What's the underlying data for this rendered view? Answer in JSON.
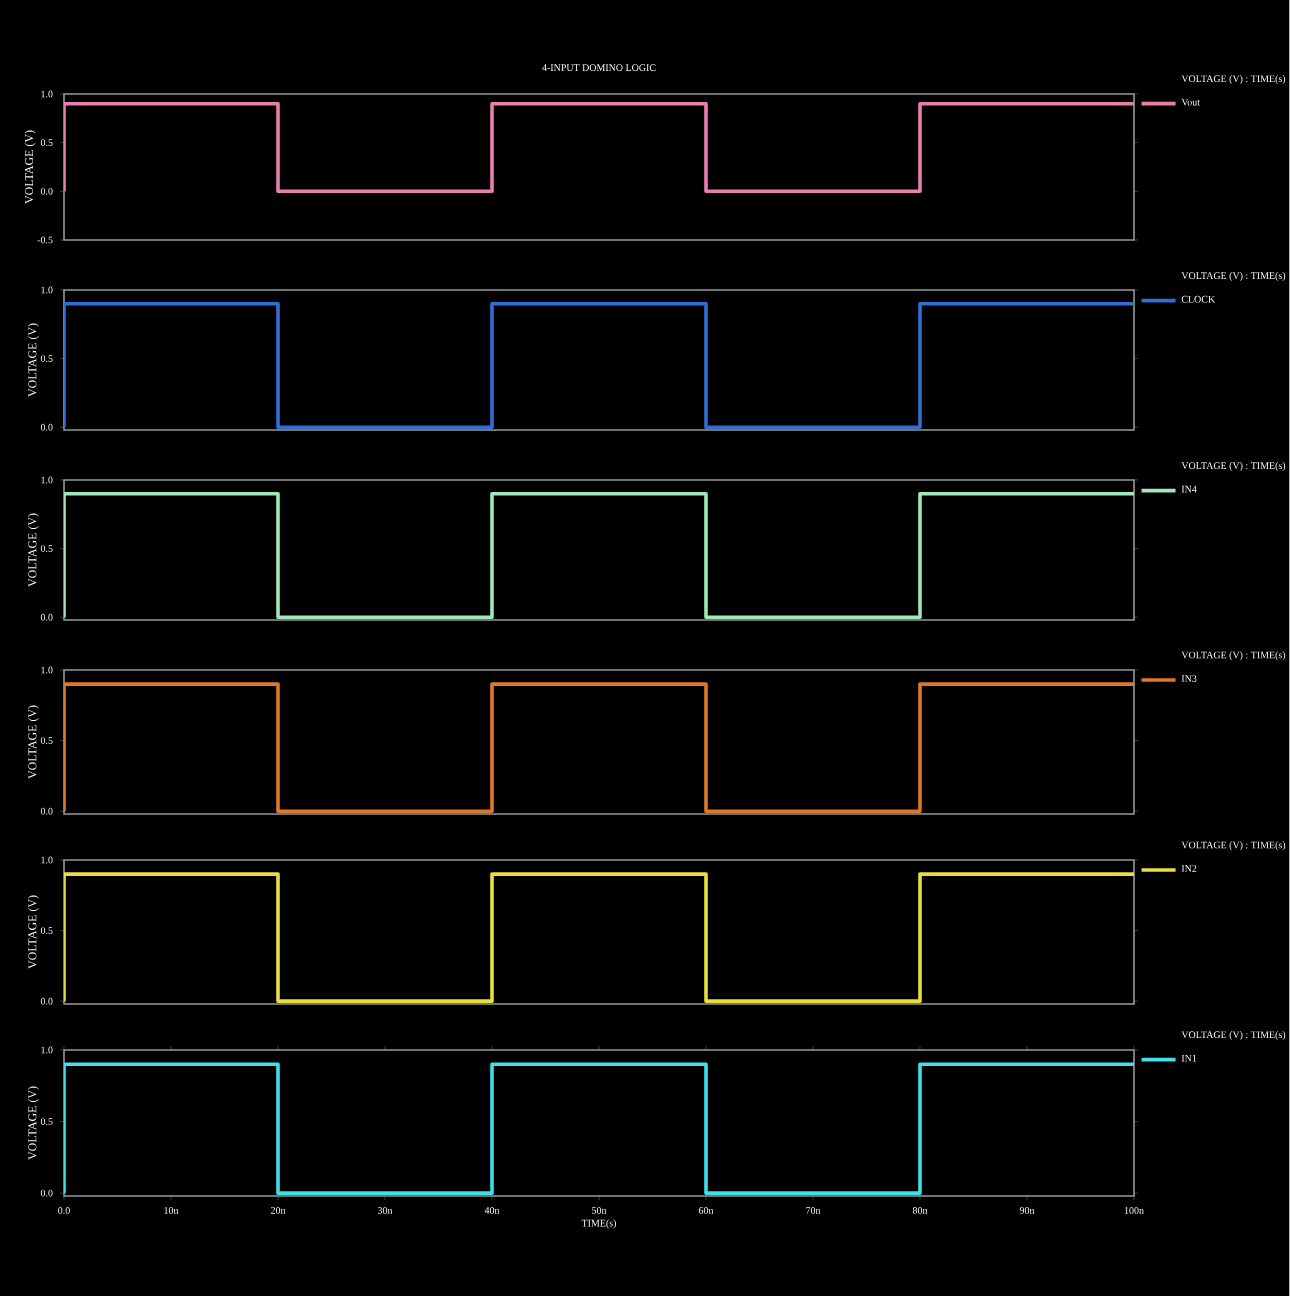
{
  "chart_data": [
    {
      "type": "line",
      "title": "4-INPUT DOMINO LOGIC",
      "ylabel": "VOLTAGE (V)",
      "legend_title": "VOLTAGE (V) : TIME(s)",
      "legend": "right",
      "tick_labels": "y",
      "xlim": [
        0,
        100
      ],
      "ylim": [
        -0.5,
        1.0
      ],
      "yticks": [
        {
          "value": -0.5,
          "label": "-0.5"
        },
        {
          "value": 0,
          "label": "0.0"
        },
        {
          "value": 0.5,
          "label": "0.5"
        },
        {
          "value": 1.0,
          "label": "1.0"
        }
      ],
      "series": [
        {
          "name": "Vout",
          "color": "#e87fb0",
          "x": [
            0,
            0,
            20,
            20,
            40,
            40,
            60,
            60,
            80,
            80,
            100
          ],
          "values": [
            0,
            0.9,
            0.9,
            0,
            0,
            0.9,
            0.9,
            0,
            0,
            0.9,
            0.9
          ]
        }
      ]
    },
    {
      "type": "line",
      "ylabel": "VOLTAGE (V)",
      "legend_title": "VOLTAGE (V) : TIME(s)",
      "legend": "right",
      "tick_labels": "y",
      "xlim": [
        0,
        100
      ],
      "ylim": [
        -0.02,
        1.0
      ],
      "yticks": [
        {
          "value": 0,
          "label": "0.0"
        },
        {
          "value": 0.5,
          "label": "0.5"
        },
        {
          "value": 1.0,
          "label": "1.0"
        }
      ],
      "series": [
        {
          "name": "CLOCK",
          "color": "#2f6fd6",
          "x": [
            0,
            0,
            20,
            20,
            40,
            40,
            60,
            60,
            80,
            80,
            100
          ],
          "values": [
            0,
            0.9,
            0.9,
            0,
            0,
            0.9,
            0.9,
            0,
            0,
            0.9,
            0.9
          ]
        }
      ]
    },
    {
      "type": "line",
      "ylabel": "VOLTAGE (V)",
      "legend_title": "VOLTAGE (V) : TIME(s)",
      "legend": "right",
      "tick_labels": "y",
      "xlim": [
        0,
        100
      ],
      "ylim": [
        -0.02,
        1.0
      ],
      "yticks": [
        {
          "value": 0,
          "label": "0.0"
        },
        {
          "value": 0.5,
          "label": "0.5"
        },
        {
          "value": 1.0,
          "label": "1.0"
        }
      ],
      "series": [
        {
          "name": "IN4",
          "color": "#a0e8b8",
          "x": [
            0,
            0,
            20,
            20,
            40,
            40,
            60,
            60,
            80,
            80,
            100
          ],
          "values": [
            0,
            0.9,
            0.9,
            0,
            0,
            0.9,
            0.9,
            0,
            0,
            0.9,
            0.9
          ]
        }
      ]
    },
    {
      "type": "line",
      "ylabel": "VOLTAGE (V)",
      "legend_title": "VOLTAGE (V) : TIME(s)",
      "legend": "right",
      "tick_labels": "y",
      "xlim": [
        0,
        100
      ],
      "ylim": [
        -0.02,
        1.0
      ],
      "yticks": [
        {
          "value": 0,
          "label": "0.0"
        },
        {
          "value": 0.5,
          "label": "0.5"
        },
        {
          "value": 1.0,
          "label": "1.0"
        }
      ],
      "series": [
        {
          "name": "IN3",
          "color": "#e07828",
          "x": [
            0,
            0,
            20,
            20,
            40,
            40,
            60,
            60,
            80,
            80,
            100
          ],
          "values": [
            0,
            0.9,
            0.9,
            0,
            0,
            0.9,
            0.9,
            0,
            0,
            0.9,
            0.9
          ]
        }
      ]
    },
    {
      "type": "line",
      "ylabel": "VOLTAGE (V)",
      "legend_title": "VOLTAGE (V) : TIME(s)",
      "legend": "right",
      "tick_labels": "y",
      "xlim": [
        0,
        100
      ],
      "ylim": [
        -0.02,
        1.0
      ],
      "yticks": [
        {
          "value": 0,
          "label": "0.0"
        },
        {
          "value": 0.5,
          "label": "0.5"
        },
        {
          "value": 1.0,
          "label": "1.0"
        }
      ],
      "series": [
        {
          "name": "IN2",
          "color": "#e8e040",
          "x": [
            0,
            0,
            20,
            20,
            40,
            40,
            60,
            60,
            80,
            80,
            100
          ],
          "values": [
            0,
            0.9,
            0.9,
            0,
            0,
            0.9,
            0.9,
            0,
            0,
            0.9,
            0.9
          ]
        }
      ]
    },
    {
      "type": "line",
      "xlabel": "TIME(s)",
      "ylabel": "VOLTAGE (V)",
      "legend_title": "VOLTAGE (V) : TIME(s)",
      "legend": "right",
      "xlim": [
        0,
        100
      ],
      "ylim": [
        -0.02,
        1.0
      ],
      "xticks": [
        {
          "value": 0,
          "label": "0.0"
        },
        {
          "value": 10,
          "label": "10n"
        },
        {
          "value": 20,
          "label": "20n"
        },
        {
          "value": 30,
          "label": "30n"
        },
        {
          "value": 40,
          "label": "40n"
        },
        {
          "value": 50,
          "label": "50n"
        },
        {
          "value": 60,
          "label": "60n"
        },
        {
          "value": 70,
          "label": "70n"
        },
        {
          "value": 80,
          "label": "80n"
        },
        {
          "value": 90,
          "label": "90n"
        },
        {
          "value": 100,
          "label": "100n"
        }
      ],
      "yticks": [
        {
          "value": 0,
          "label": "0.0"
        },
        {
          "value": 0.5,
          "label": "0.5"
        },
        {
          "value": 1.0,
          "label": "1.0"
        }
      ],
      "series": [
        {
          "name": "IN1",
          "color": "#40e0e8",
          "x": [
            0,
            0,
            20,
            20,
            40,
            40,
            60,
            60,
            80,
            80,
            100
          ],
          "values": [
            0,
            0.9,
            0.9,
            0,
            0,
            0.9,
            0.9,
            0,
            0,
            0.9,
            0.9
          ]
        }
      ]
    }
  ]
}
